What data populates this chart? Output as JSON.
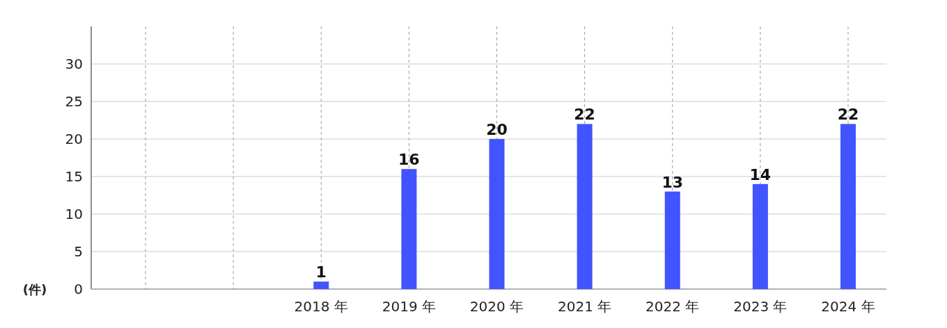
{
  "chart_data": {
    "type": "bar",
    "ylabel": "(件)",
    "categories": [
      null,
      null,
      "2018 年",
      "2019 年",
      "2020 年",
      "2021 年",
      "2022 年",
      "2023 年",
      "2024 年"
    ],
    "values": [
      null,
      null,
      1,
      16,
      20,
      22,
      13,
      14,
      22
    ],
    "color": "#4154ff",
    "ylim": [
      0,
      35
    ],
    "yticks": [
      0,
      5,
      10,
      15,
      20,
      25,
      30
    ],
    "grid": true,
    "data_labels": true
  }
}
